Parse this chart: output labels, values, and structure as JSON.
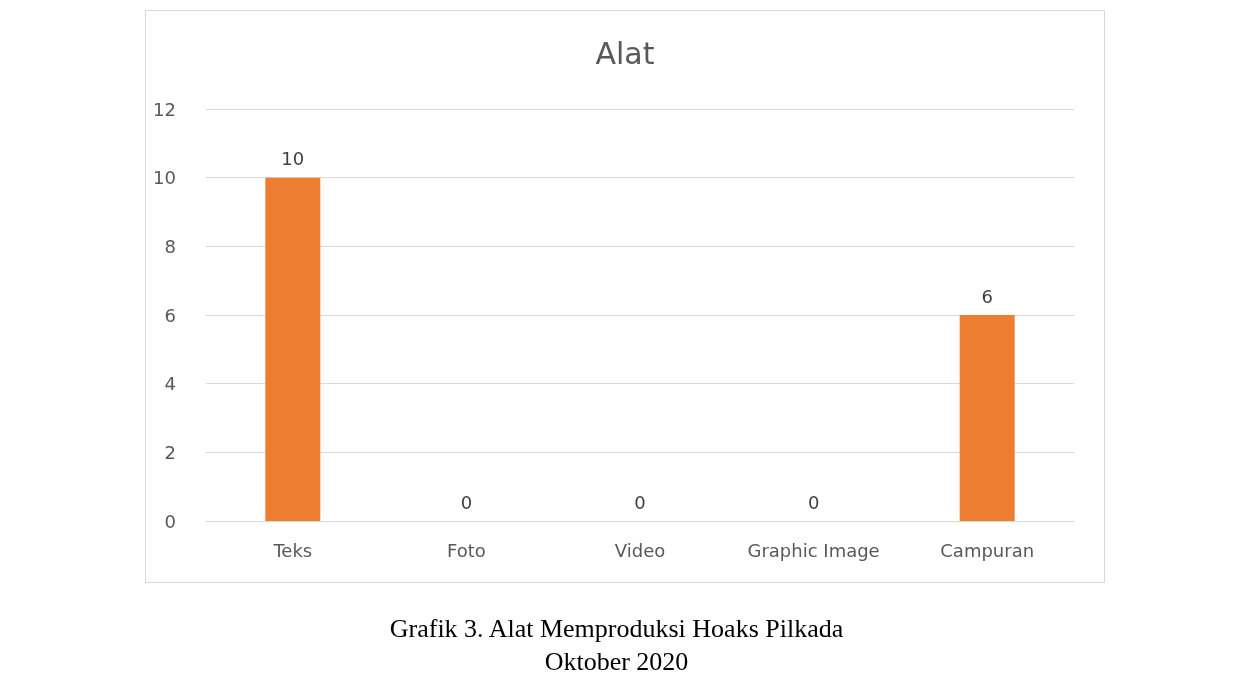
{
  "chart_data": {
    "type": "bar",
    "title": "Alat",
    "categories": [
      "Teks",
      "Foto",
      "Video",
      "Graphic Image",
      "Campuran"
    ],
    "values": [
      10,
      0,
      0,
      0,
      6
    ],
    "color": "#ed7d31",
    "ylim": [
      0,
      12
    ],
    "yticks": [
      0,
      2,
      4,
      6,
      8,
      10,
      12
    ],
    "grid": "y",
    "data_labels": true,
    "annotations": [
      "Grafik 3. Alat Memproduksi Hoaks Pilkada",
      "Oktober 2020"
    ]
  }
}
